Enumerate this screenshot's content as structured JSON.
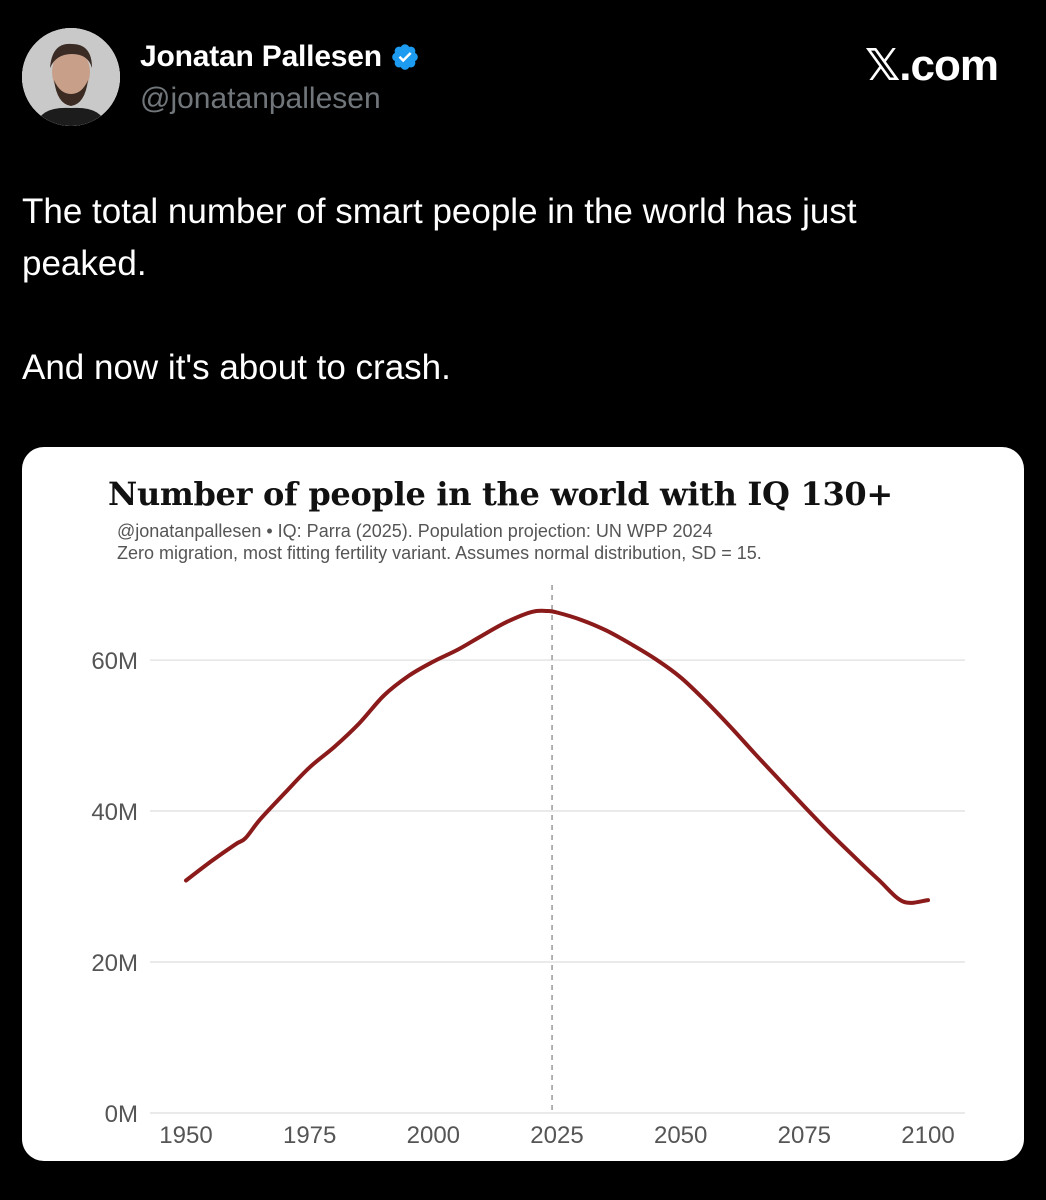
{
  "tweet": {
    "author_name": "Jonatan Pallesen",
    "author_handle": "@jonatanpallesen",
    "site": "𝕏.com",
    "text": "The total number of smart people in the world has just peaked.\n\nAnd now it's about to crash."
  },
  "icons": {
    "avatar": "avatar-photo",
    "verified": "verified-badge-icon"
  },
  "colors": {
    "background": "#000000",
    "verified": "#1d9bf0",
    "line": "#8b1a1a",
    "grid": "#e4e4e4",
    "vline": "#999999"
  },
  "chart_data": {
    "type": "line",
    "title": "Number of people in the world with IQ 130+",
    "subtitle_lines": [
      "@jonatanpallesen • IQ: Parra (2025). Population projection: UN WPP 2024",
      "Zero migration, most fitting fertility variant. Assumes normal distribution, SD = 15."
    ],
    "x_ticks": [
      "1950",
      "1975",
      "2000",
      "2025",
      "2050",
      "2075",
      "2100"
    ],
    "y_ticks": [
      "0M",
      "20M",
      "40M",
      "60M"
    ],
    "ylim": [
      0,
      66.5
    ],
    "xlim": [
      1950,
      2100
    ],
    "series": [
      {
        "x": [
          1950,
          1955,
          1960,
          1962,
          1965,
          1970,
          1975,
          1980,
          1985,
          1990,
          1995,
          2000,
          2005,
          2010,
          2015,
          2020,
          2023,
          2025,
          2030,
          2035,
          2040,
          2045,
          2050,
          2055,
          2060,
          2065,
          2070,
          2075,
          2080,
          2085,
          2090,
          2095,
          2100
        ],
        "values": [
          30.8,
          33.3,
          35.6,
          36.4,
          38.9,
          42.4,
          45.8,
          48.5,
          51.6,
          55.3,
          57.9,
          59.8,
          61.4,
          63.3,
          65.1,
          66.4,
          66.5,
          66.3,
          65.3,
          63.9,
          62.1,
          60.1,
          57.7,
          54.6,
          51.2,
          47.6,
          44.1,
          40.6,
          37.2,
          34.0,
          30.9,
          28.0,
          28.2
        ]
      }
    ],
    "vline_x": 2024,
    "grid": true,
    "legend": "none"
  }
}
